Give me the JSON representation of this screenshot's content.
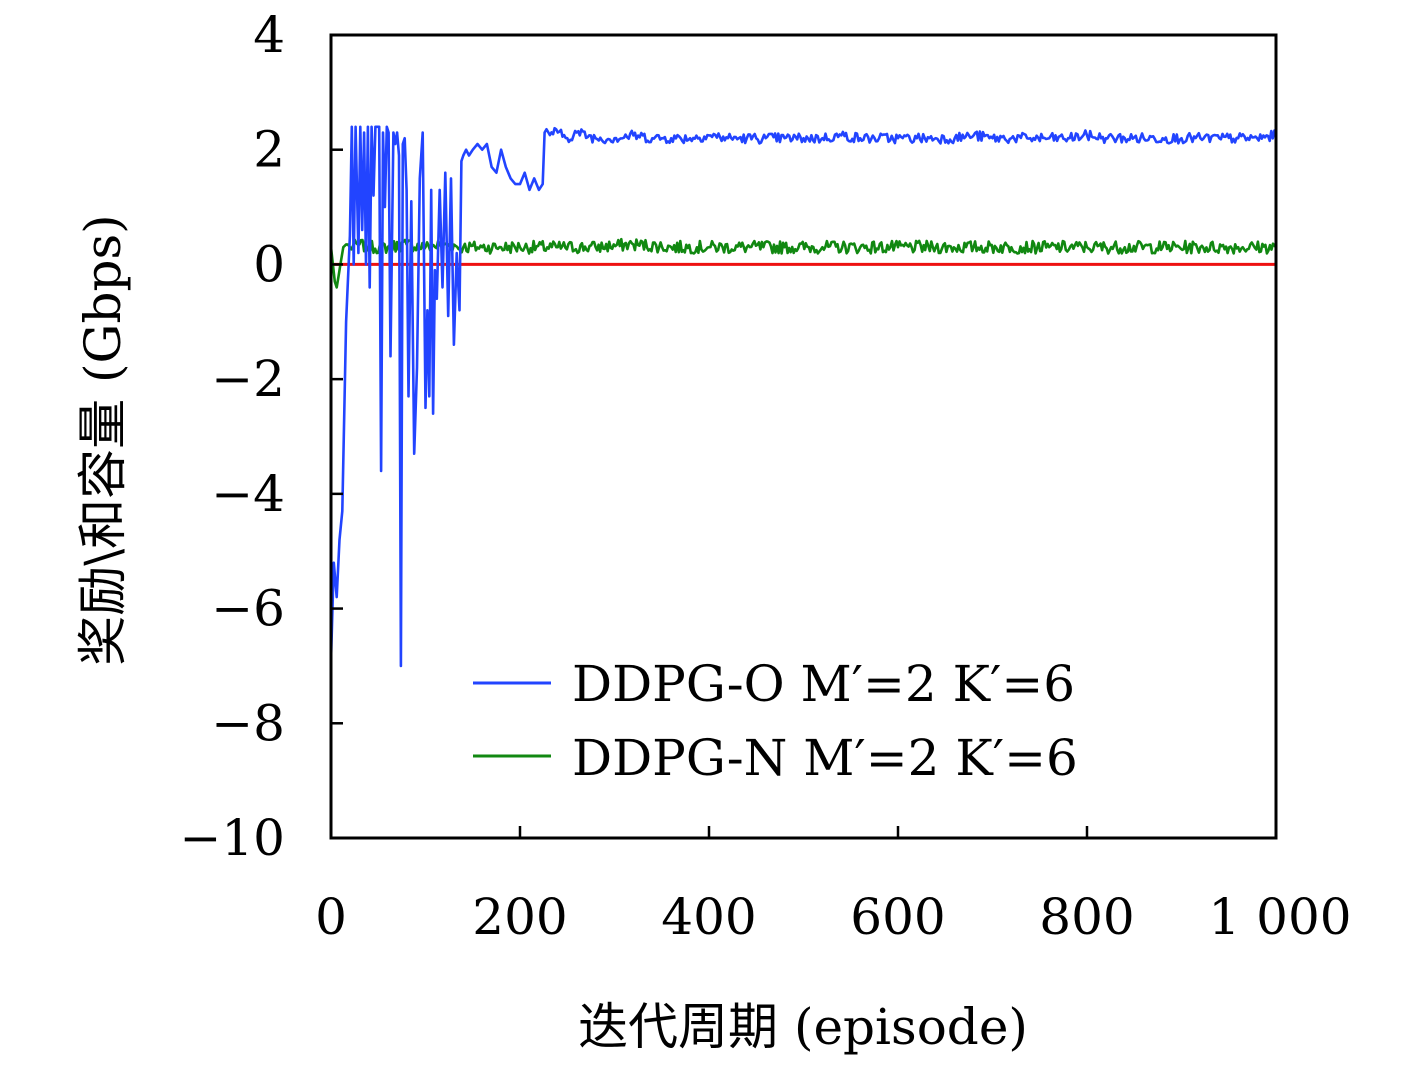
{
  "chart_data": {
    "type": "line",
    "title": "",
    "xlabel": "迭代周期 (episode)",
    "ylabel": "奖励\\和容量 (Gbps)",
    "xlim": [
      0,
      1000
    ],
    "ylim": [
      -10,
      4
    ],
    "xticks": [
      0,
      200,
      400,
      600,
      800,
      1000
    ],
    "xtick_labels": [
      "0",
      "200",
      "400",
      "600",
      "800",
      "1 000"
    ],
    "yticks": [
      4,
      2,
      0,
      -2,
      -4,
      -6,
      -8,
      -10
    ],
    "ytick_labels": [
      "4",
      "2",
      "0",
      "−2",
      "−4",
      "−6",
      "−8",
      "−10"
    ],
    "legend_position": "lower-right",
    "grid": false,
    "series": [
      {
        "name": "DDPG-O M′=2 K′=6",
        "color": "#2244ff",
        "x": [
          0,
          3,
          6,
          9,
          12,
          16,
          20,
          22,
          24,
          26,
          29,
          31,
          33,
          35,
          37,
          39,
          41,
          43,
          45,
          47,
          49,
          51,
          53,
          55,
          57,
          59,
          61,
          63,
          66,
          68,
          70,
          72,
          74,
          76,
          78,
          80,
          82,
          85,
          88,
          91,
          94,
          97,
          100,
          102,
          104,
          106,
          108,
          110,
          112,
          115,
          118,
          121,
          124,
          127,
          130,
          133,
          136,
          138,
          140,
          143,
          146,
          150,
          155,
          160,
          165,
          170,
          175,
          180,
          185,
          190,
          195,
          200,
          205,
          210,
          215,
          220,
          224,
          226,
          230,
          240,
          250,
          260,
          280,
          300,
          320,
          340,
          360,
          380,
          400,
          420,
          440,
          460,
          480,
          500,
          520,
          540,
          560,
          580,
          600,
          620,
          640,
          660,
          680,
          700,
          720,
          740,
          760,
          780,
          800,
          820,
          840,
          860,
          880,
          900,
          920,
          940,
          960,
          980,
          1000
        ],
        "values": [
          -6.9,
          -5.2,
          -5.8,
          -4.8,
          -4.3,
          -1.0,
          0.5,
          2.4,
          0.0,
          2.4,
          0.2,
          2.4,
          0.6,
          2.3,
          0.0,
          2.4,
          -0.4,
          2.4,
          1.2,
          2.4,
          2.4,
          2.4,
          -3.6,
          2.3,
          1.0,
          2.4,
          2.3,
          -1.6,
          2.3,
          2.1,
          2.3,
          1.9,
          -7.0,
          2.1,
          2.2,
          1.3,
          -2.3,
          1.1,
          -3.3,
          -1.8,
          1.5,
          2.3,
          -2.5,
          -0.8,
          -2.3,
          1.3,
          -2.6,
          -0.1,
          -0.6,
          1.3,
          -0.4,
          1.6,
          -0.9,
          1.5,
          -1.4,
          0.2,
          -0.8,
          1.8,
          1.9,
          2.0,
          1.9,
          2.0,
          2.1,
          2.0,
          2.1,
          1.7,
          1.6,
          2.0,
          1.7,
          1.5,
          1.4,
          1.4,
          1.6,
          1.3,
          1.5,
          1.3,
          1.4,
          2.3,
          2.3,
          2.3,
          2.2,
          2.3,
          2.2,
          2.2,
          2.25,
          2.2,
          2.2,
          2.2,
          2.25,
          2.2,
          2.2,
          2.2,
          2.2,
          2.2,
          2.2,
          2.25,
          2.2,
          2.2,
          2.2,
          2.2,
          2.2,
          2.2,
          2.25,
          2.2,
          2.2,
          2.2,
          2.2,
          2.2,
          2.25,
          2.2,
          2.2,
          2.2,
          2.2,
          2.2,
          2.2,
          2.2,
          2.2,
          2.2,
          2.25
        ]
      },
      {
        "name": "DDPG-N M′=2 K′=6",
        "color": "#118811",
        "x": [
          0,
          2,
          4,
          6,
          8,
          10,
          13,
          16,
          20,
          30,
          40,
          60,
          80,
          100,
          120,
          140,
          160,
          180,
          200,
          240,
          280,
          320,
          360,
          400,
          440,
          480,
          520,
          560,
          600,
          640,
          680,
          720,
          760,
          800,
          840,
          880,
          920,
          960,
          1000
        ],
        "values": [
          0.3,
          0.0,
          -0.3,
          -0.4,
          -0.2,
          0.0,
          0.3,
          0.35,
          0.3,
          0.35,
          0.3,
          0.3,
          0.35,
          0.3,
          0.35,
          0.3,
          0.3,
          0.3,
          0.3,
          0.3,
          0.3,
          0.35,
          0.3,
          0.3,
          0.3,
          0.3,
          0.3,
          0.3,
          0.3,
          0.3,
          0.3,
          0.3,
          0.3,
          0.3,
          0.3,
          0.3,
          0.3,
          0.3,
          0.3
        ]
      },
      {
        "name": "",
        "color": "#ee1111",
        "x": [
          0,
          1000
        ],
        "values": [
          0,
          0
        ]
      }
    ]
  }
}
